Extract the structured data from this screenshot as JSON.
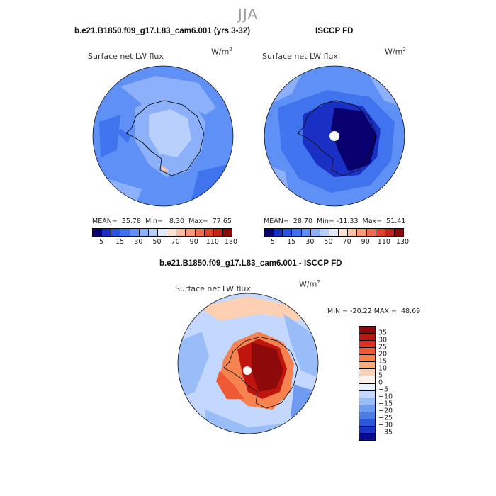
{
  "season": "JJA",
  "panels": {
    "left": {
      "title": "b.e21.B1850.f09_g17.L83_cam6.001 (yrs 3-32)",
      "variable": "Surface net LW flux",
      "units_base": "W/m",
      "units_exp": "2",
      "stats": "MEAN=  35.78  Min=   8.30  Max=  77.65"
    },
    "right": {
      "title": "ISCCP FD",
      "variable": "Surface net LW flux",
      "units_base": "W/m",
      "units_exp": "2",
      "stats": "MEAN=  28.70  Min= -11.33  Max=  51.41"
    },
    "diff": {
      "title": "b.e21.B1850.f09_g17.L83_cam6.001 - ISCCP FD",
      "variable": "Surface net LW flux",
      "units_base": "W/m",
      "units_exp": "2",
      "stats": "MIN = -20.22 MAX =  48.69"
    }
  },
  "colorbar_top": {
    "colors": [
      "#08006e",
      "#1a2fc4",
      "#2a55e0",
      "#3f74ee",
      "#5f90f5",
      "#8cb0fa",
      "#b9d0fd",
      "#e0ebff",
      "#fde3d2",
      "#fcc1a3",
      "#f79a7a",
      "#ee6d4e",
      "#e0432c",
      "#c02414",
      "#8e0909"
    ],
    "tick_labels": [
      "5",
      "15",
      "30",
      "50",
      "70",
      "90",
      "110",
      "130"
    ]
  },
  "colorbar_diff": {
    "colors": [
      "#8e0909",
      "#c0150f",
      "#e0301f",
      "#ef5a36",
      "#f6834f",
      "#fbaa7a",
      "#fdd0b4",
      "#fdf0e6",
      "#e8f0ff",
      "#c4d8ff",
      "#98bdf8",
      "#6f9cf2",
      "#4b7ce8",
      "#2a57db",
      "#1a34c4",
      "#0a0a8e"
    ],
    "tick_labels": [
      "35",
      "30",
      "25",
      "20",
      "15",
      "10",
      "5",
      "0",
      "−5",
      "−10",
      "−15",
      "−20",
      "−25",
      "−30",
      "−35"
    ]
  }
}
